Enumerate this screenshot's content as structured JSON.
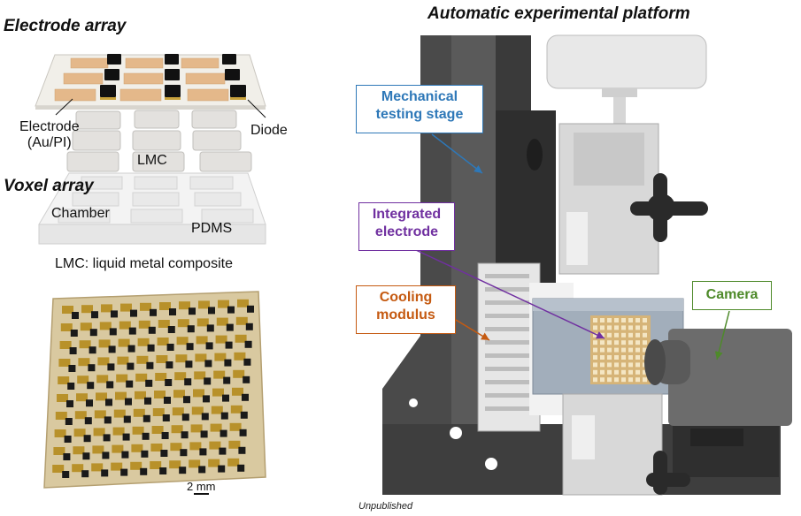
{
  "left": {
    "electrode_title": "Electrode array",
    "voxel_title": "Voxel array",
    "electrode_label_line1": "Electrode",
    "electrode_label_line2": "(Au/PI)",
    "diode_label": "Diode",
    "lmc_label": "LMC",
    "chamber_label": "Chamber",
    "pdms_label": "PDMS",
    "legend_note": "LMC: liquid metal composite",
    "scale_bar": "2 mm"
  },
  "right": {
    "title": "Automatic experimental platform",
    "mechanical_line1": "Mechanical",
    "mechanical_line2": "testing stage",
    "integrated_line1": "Integrated",
    "integrated_line2": "electrode",
    "cooling_line1": "Cooling",
    "cooling_line2": "modulus",
    "camera": "Camera",
    "footnote": "Unpublished"
  },
  "colors": {
    "mechanical": "#2e78b8",
    "integrated": "#7030a0",
    "cooling": "#c55a11",
    "camera": "#4e8a2a"
  }
}
